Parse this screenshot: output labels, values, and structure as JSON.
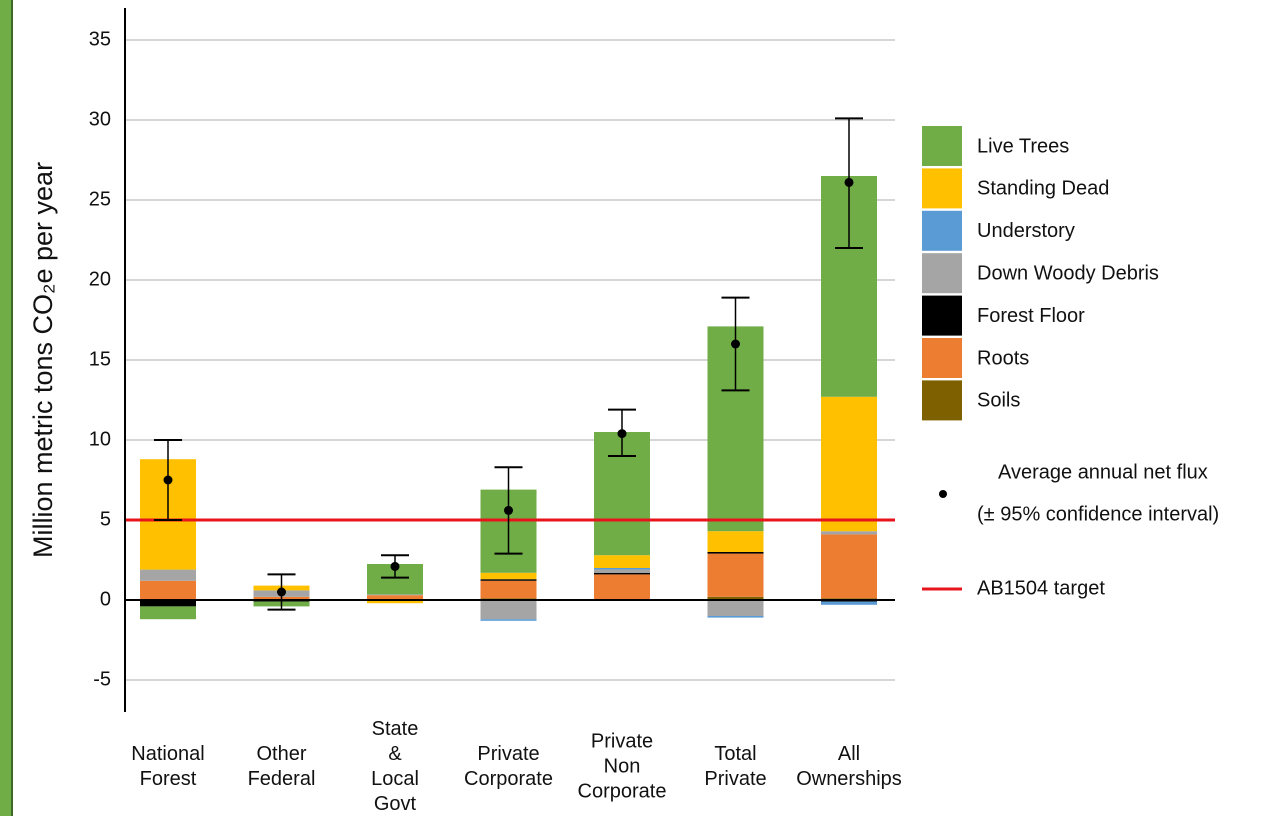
{
  "chart_data": {
    "type": "bar",
    "stacked": true,
    "ylabel": "Million metric tons CO₂e per year",
    "categories": [
      "National\nForest",
      "Other\nFederal",
      "State\n&\nLocal\nGovt",
      "Private\nCorporate",
      "Private\nNon\nCorporate",
      "Total\nPrivate",
      "All\nOwnerships"
    ],
    "series": [
      {
        "name": "Live Trees",
        "color": "#70ad47",
        "values": [
          -0.8,
          -0.3,
          1.9,
          5.2,
          7.7,
          12.8,
          13.8
        ]
      },
      {
        "name": "Standing Dead",
        "color": "#ffc000",
        "values": [
          6.9,
          0.3,
          -0.2,
          0.4,
          0.8,
          1.3,
          8.4
        ]
      },
      {
        "name": "Understory",
        "color": "#5b9bd5",
        "values": [
          0,
          0,
          0,
          -0.1,
          0.1,
          -0.1,
          -0.2
        ]
      },
      {
        "name": "Down Woody Debris",
        "color": "#a5a5a5",
        "values": [
          0.7,
          0.4,
          0.05,
          -1.2,
          0.2,
          -1.0,
          0.2
        ]
      },
      {
        "name": "Forest Floor",
        "color": "#000000",
        "values": [
          -0.4,
          -0.1,
          0,
          0.1,
          0.1,
          0.1,
          -0.1
        ]
      },
      {
        "name": "Roots",
        "color": "#ed7d31",
        "values": [
          1.2,
          0.2,
          0.3,
          1.1,
          1.6,
          2.7,
          4.0
        ]
      },
      {
        "name": "Soils",
        "color": "#7f6000",
        "values": [
          0,
          0,
          0,
          0.1,
          0,
          0.2,
          0.1
        ]
      }
    ],
    "points": {
      "name": "Average annual net flux",
      "note": "(± 95% confidence interval)",
      "color": "#000000",
      "values": [
        7.5,
        0.5,
        2.1,
        5.6,
        10.4,
        16.0,
        26.1
      ],
      "ci_low": [
        5.0,
        -0.6,
        1.4,
        2.9,
        9.0,
        13.1,
        22.0
      ],
      "ci_high": [
        10.0,
        1.6,
        2.8,
        8.3,
        11.9,
        18.9,
        30.1
      ]
    },
    "target": {
      "name": "AB1504 target",
      "value": 5,
      "color": "#e8141c"
    },
    "ylim": [
      -7,
      37
    ],
    "yticks": [
      -5,
      0,
      5,
      10,
      15,
      20,
      25,
      30,
      35
    ],
    "grid": true
  }
}
